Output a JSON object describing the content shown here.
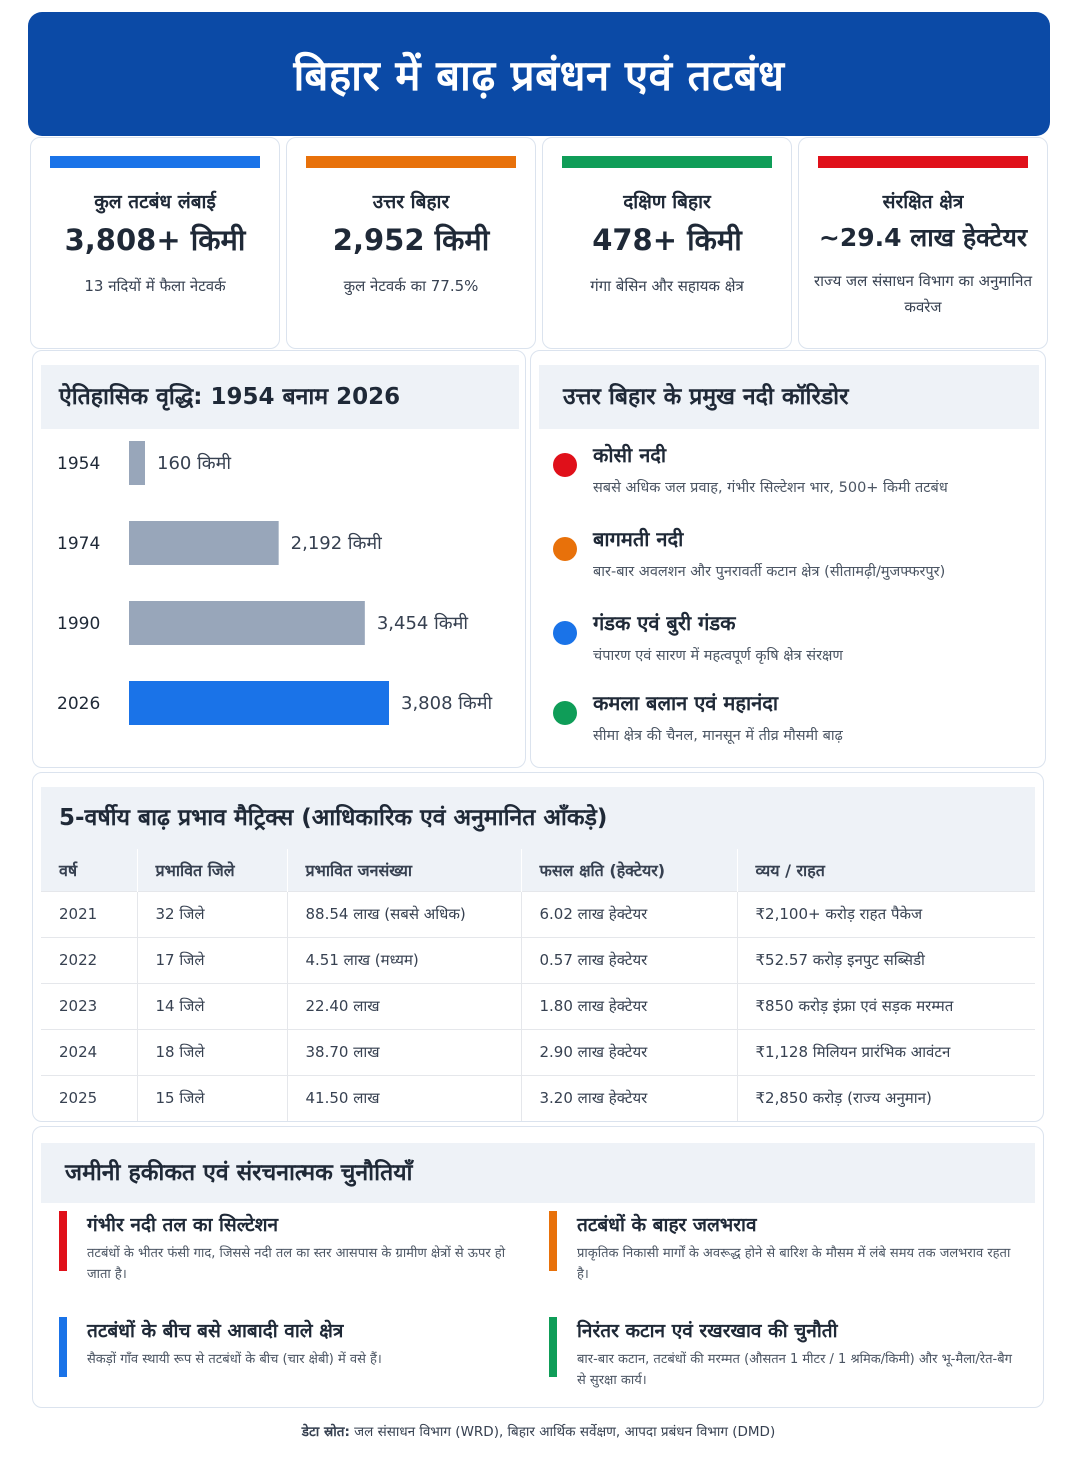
{
  "title": "बिहार में बाढ़ प्रबंधन एवं तटबंध",
  "stats": [
    {
      "label": "कुल तटबंध लंबाई",
      "value": "3,808+ किमी",
      "note": "13 नदियों में फैला नेटवर्क",
      "color": "#1a73e8"
    },
    {
      "label": "उत्तर बिहार",
      "value": "2,952 किमी",
      "note": "कुल नेटवर्क का 77.5%",
      "color": "#e8710a"
    },
    {
      "label": "दक्षिण बिहार",
      "value": "478+ किमी",
      "note": "गंगा बेसिन और सहायक क्षेत्र",
      "color": "#0f9d58"
    },
    {
      "label": "संरक्षित क्षेत्र",
      "value": "~29.4 लाख हेक्टेयर",
      "note": "राज्य जल संसाधन विभाग का अनुमानित कवरेज",
      "color": "#e0101a"
    }
  ],
  "history": {
    "title": "ऐतिहासिक वृद्धि: 1954 बनाम 2026",
    "unit": "किमी",
    "gray_color": "#98a6ba",
    "highlight_color": "#1a73e8"
  },
  "chart_data": {
    "type": "bar",
    "orientation": "horizontal",
    "title": "ऐतिहासिक वृद्धि: 1954 बनाम 2026",
    "categories": [
      "1954",
      "1974",
      "1990",
      "2026"
    ],
    "values": [
      160,
      2192,
      3454,
      3808
    ],
    "value_labels": [
      "160 किमी",
      "2,192 किमी",
      "3,454 किमी",
      "3,808 किमी"
    ],
    "highlight": "2026",
    "grid": false
  },
  "corridors": {
    "title": "उत्तर बिहार के प्रमुख नदी कॉरिडोर",
    "items": [
      {
        "name": "कोसी नदी",
        "desc": "सबसे अधिक जल प्रवाह, गंभीर सिल्टेशन भार, 500+ किमी तटबंध",
        "color": "#e0101a"
      },
      {
        "name": "बागमती नदी",
        "desc": "बार-बार अवलशन और पुनरावर्ती कटान क्षेत्र (सीतामढ़ी/मुजफ्फरपुर)",
        "color": "#e8710a"
      },
      {
        "name": "गंडक एवं बुरी गंडक",
        "desc": "चंपारण एवं सारण में महत्वपूर्ण कृषि क्षेत्र संरक्षण",
        "color": "#1a73e8"
      },
      {
        "name": "कमला बलान एवं महानंदा",
        "desc": "सीमा क्षेत्र की चैनल, मानसून में तीव्र मौसमी बाढ़",
        "color": "#0f9d58"
      }
    ]
  },
  "impact": {
    "title": "5-वर्षीय बाढ़ प्रभाव मैट्रिक्स (आधिकारिक एवं अनुमानित आँकड़े)",
    "headers": [
      "वर्ष",
      "प्रभावित जिले",
      "प्रभावित जनसंख्या",
      "फसल क्षति (हेक्टेयर)",
      "व्यय / राहत"
    ],
    "rows": [
      [
        "2021",
        "32 जिले",
        "88.54 लाख (सबसे अधिक)",
        "6.02 लाख हेक्टेयर",
        "₹2,100+ करोड़ राहत पैकेज"
      ],
      [
        "2022",
        "17 जिले",
        "4.51 लाख (मध्यम)",
        "0.57 लाख हेक्टेयर",
        "₹52.57 करोड़ इनपुट सब्सिडी"
      ],
      [
        "2023",
        "14 जिले",
        "22.40 लाख",
        "1.80 लाख हेक्टेयर",
        "₹850 करोड़ इंफ्रा एवं सड़क मरम्मत"
      ],
      [
        "2024",
        "18 जिले",
        "38.70 लाख",
        "2.90 लाख हेक्टेयर",
        "₹1,128 मिलियन प्रारंभिक आवंटन"
      ],
      [
        "2025",
        "15 जिले",
        "41.50 लाख",
        "3.20 लाख हेक्टेयर",
        "₹2,850 करोड़ (राज्य अनुमान)"
      ]
    ]
  },
  "challenges": {
    "title": "जमीनी हकीकत एवं संरचनात्मक चुनौतियाँ",
    "items": [
      {
        "title": "गंभीर नदी तल का सिल्टेशन",
        "desc": "तटबंधों के भीतर फंसी गाद, जिससे नदी तल का स्तर आसपास के ग्रामीण क्षेत्रों से ऊपर हो जाता है।",
        "color": "#e0101a"
      },
      {
        "title": "तटबंधों के बाहर जलभराव",
        "desc": "प्राकृतिक निकासी मार्गों के अवरूद्ध होने से बारिश के मौसम में लंबे समय तक जलभराव रहता है।",
        "color": "#e8710a"
      },
      {
        "title": "तटबंधों के बीच बसे आबादी वाले क्षेत्र",
        "desc": "सैकड़ों गाँव स्थायी रूप से तटबंधों के बीच (चार क्षेबी) में वसे हैं।",
        "color": "#1a73e8"
      },
      {
        "title": "निरंतर कटान एवं रखरखाव की चुनौती",
        "desc": "बार-बार कटान, तटबंधों की मरम्मत (औसतन 1 मीटर / 1 श्रमिक/किमी) और भू-मैला/रेत-बैग से सुरक्षा कार्य।",
        "color": "#0f9d58"
      }
    ]
  },
  "footer": {
    "label": "डेटा स्रोत:",
    "text": " जल संसाधन विभाग (WRD), बिहार आर्थिक सर्वेक्षण, आपदा प्रबंधन विभाग (DMD)"
  }
}
